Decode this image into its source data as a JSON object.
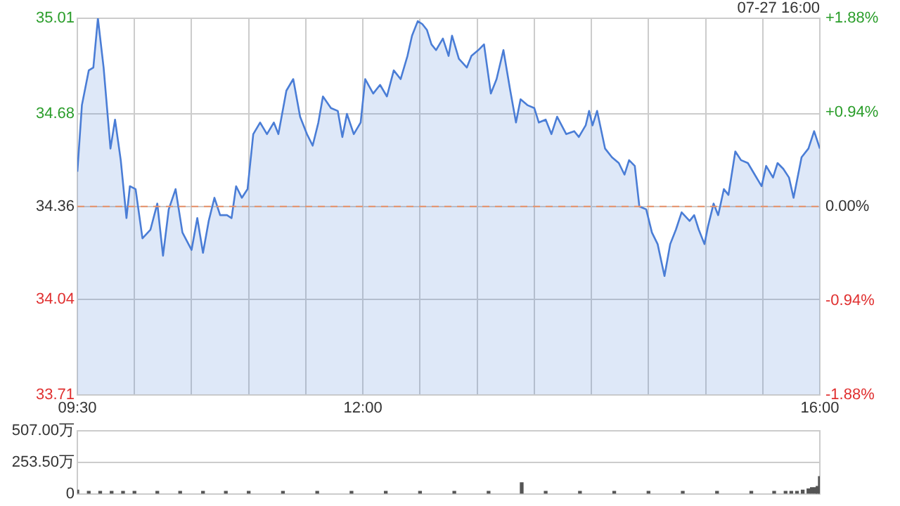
{
  "chart_data": [
    {
      "type": "area",
      "annotations": [
        "07-27 16:00"
      ],
      "x": [
        9.5,
        9.54,
        9.6,
        9.64,
        9.68,
        9.73,
        9.79,
        9.83,
        9.88,
        9.93,
        9.96,
        10.01,
        10.07,
        10.14,
        10.2,
        10.25,
        10.3,
        10.36,
        10.42,
        10.5,
        10.55,
        10.6,
        10.65,
        10.7,
        10.75,
        10.81,
        10.85,
        10.89,
        10.94,
        10.99,
        11.04,
        11.1,
        11.16,
        11.22,
        11.26,
        11.33,
        11.39,
        11.45,
        11.51,
        11.56,
        11.61,
        11.65,
        11.72,
        11.78,
        11.82,
        11.86,
        11.92,
        11.98,
        12.02,
        12.09,
        12.15,
        12.21,
        12.27,
        12.33,
        12.39,
        12.43,
        12.48,
        12.52,
        12.56,
        12.6,
        12.64,
        12.7,
        12.75,
        12.78,
        12.84,
        12.91,
        12.95,
        13.01,
        13.06,
        13.12,
        13.17,
        13.23,
        13.29,
        13.34,
        13.38,
        13.44,
        13.5,
        13.54,
        13.6,
        13.65,
        13.7,
        13.78,
        13.85,
        13.89,
        13.95,
        13.98,
        14.01,
        14.05,
        14.12,
        14.18,
        14.24,
        14.29,
        14.33,
        14.38,
        14.42,
        14.48,
        14.53,
        14.58,
        14.64,
        14.69,
        14.74,
        14.79,
        14.86,
        14.9,
        14.94,
        14.99,
        15.02,
        15.07,
        15.11,
        15.16,
        15.2,
        15.26,
        15.31,
        15.37,
        15.43,
        15.49,
        15.53,
        15.59,
        15.63,
        15.68,
        15.73,
        15.77,
        15.84,
        15.9,
        15.95,
        16.0
      ],
      "series": [
        {
          "color": "#4a7dd6",
          "values": [
            34.48,
            34.71,
            34.83,
            34.84,
            35.01,
            34.84,
            34.56,
            34.66,
            34.52,
            34.32,
            34.43,
            34.42,
            34.25,
            34.28,
            34.37,
            34.19,
            34.35,
            34.42,
            34.27,
            34.21,
            34.32,
            34.2,
            34.31,
            34.39,
            34.33,
            34.33,
            34.32,
            34.43,
            34.39,
            34.42,
            34.61,
            34.65,
            34.61,
            34.65,
            34.61,
            34.76,
            34.8,
            34.67,
            34.61,
            34.57,
            34.65,
            34.74,
            34.7,
            34.69,
            34.6,
            34.68,
            34.61,
            34.65,
            34.8,
            34.75,
            34.78,
            34.74,
            34.83,
            34.8,
            34.88,
            34.95,
            35.0,
            34.99,
            34.97,
            34.92,
            34.9,
            34.94,
            34.88,
            34.95,
            34.87,
            34.84,
            34.88,
            34.9,
            34.92,
            34.75,
            34.8,
            34.9,
            34.76,
            34.65,
            34.73,
            34.71,
            34.7,
            34.65,
            34.66,
            34.61,
            34.67,
            34.61,
            34.62,
            34.6,
            34.64,
            34.69,
            34.64,
            34.69,
            34.56,
            34.53,
            34.51,
            34.47,
            34.52,
            34.5,
            34.36,
            34.35,
            34.27,
            34.23,
            34.12,
            34.23,
            34.28,
            34.34,
            34.31,
            34.33,
            34.28,
            34.23,
            34.29,
            34.37,
            34.33,
            34.42,
            34.4,
            34.55,
            34.52,
            34.51,
            34.47,
            34.43,
            34.5,
            34.46,
            34.51,
            34.49,
            34.46,
            34.39,
            34.53,
            34.56,
            34.62,
            34.56
          ]
        }
      ],
      "xlim": [
        9.5,
        16
      ],
      "xticks": [
        {
          "value": 9.5,
          "label": "09:30"
        },
        {
          "value": 10,
          "label": null
        },
        {
          "value": 10.5,
          "label": null
        },
        {
          "value": 11,
          "label": null
        },
        {
          "value": 11.5,
          "label": null
        },
        {
          "value": 12,
          "label": "12:00"
        },
        {
          "value": 12.5,
          "label": null
        },
        {
          "value": 13,
          "label": null
        },
        {
          "value": 13.5,
          "label": null
        },
        {
          "value": 14,
          "label": null
        },
        {
          "value": 14.5,
          "label": null
        },
        {
          "value": 15,
          "label": null
        },
        {
          "value": 15.5,
          "label": null
        },
        {
          "value": 16,
          "label": "16:00"
        }
      ],
      "ylim": [
        33.71,
        35.01
      ],
      "yticks": [
        35.01,
        34.68,
        34.36,
        34.04,
        33.71
      ],
      "y2lim": [
        -1.88,
        1.88
      ],
      "y2ticks": [
        {
          "value": 1.88,
          "label": "+1.88%"
        },
        {
          "value": 0.94,
          "label": "+0.94%"
        },
        {
          "value": 0,
          "label": "0.00%"
        },
        {
          "value": -0.94,
          "label": "-0.94%"
        },
        {
          "value": -1.88,
          "label": "-1.88%"
        }
      ],
      "ref_lines": [
        {
          "axis": "y",
          "value": 34.36,
          "color": "#e8926a",
          "line_style": "dashed"
        }
      ],
      "grid": true,
      "legend": false,
      "marker": "none"
    },
    {
      "type": "bar",
      "x": [
        9.5,
        9.6,
        9.7,
        9.8,
        9.9,
        10.0,
        10.2,
        10.4,
        10.6,
        10.8,
        11.0,
        11.3,
        11.6,
        11.9,
        12.2,
        12.5,
        12.8,
        13.1,
        13.39,
        13.6,
        13.9,
        14.2,
        14.5,
        14.8,
        15.1,
        15.4,
        15.6,
        15.7,
        15.75,
        15.8,
        15.85,
        15.9,
        15.93,
        15.96,
        15.98,
        16.0
      ],
      "series": [
        {
          "color": "#555555",
          "values": [
            30,
            20,
            20,
            20,
            20,
            20,
            20,
            20,
            20,
            20,
            20,
            20,
            20,
            20,
            20,
            20,
            20,
            20,
            90,
            20,
            20,
            20,
            20,
            20,
            20,
            20,
            20,
            20,
            20,
            20,
            30,
            40,
            50,
            50,
            60,
            140
          ]
        }
      ],
      "xlim": [
        9.5,
        16
      ],
      "ylim": [
        0,
        507
      ],
      "yticks": [
        {
          "value": 507,
          "label": "507.00万"
        },
        {
          "value": 253.5,
          "label": "253.50万"
        },
        0
      ],
      "grid": "y",
      "legend": false,
      "tick_labels": "y"
    }
  ]
}
